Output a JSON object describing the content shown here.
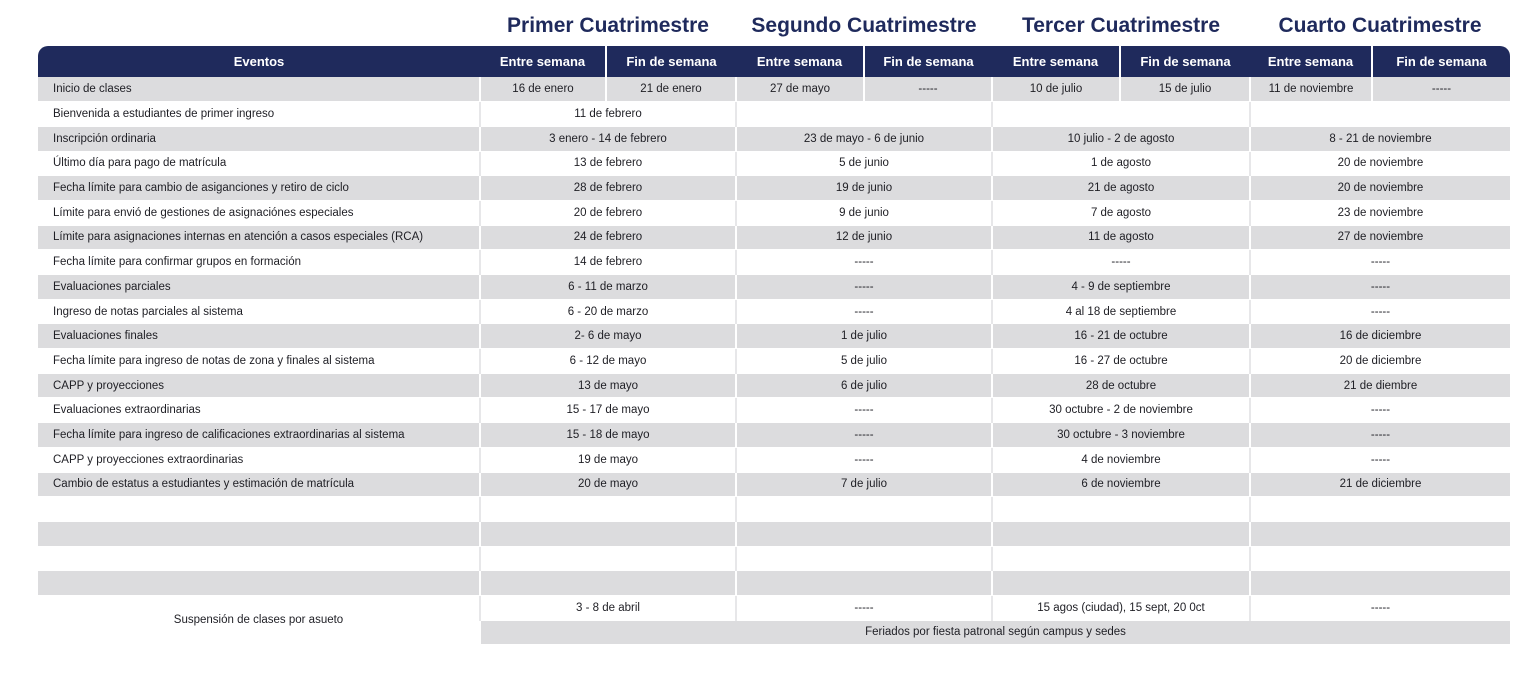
{
  "terms": [
    {
      "title": "Primer Cuatrimestre"
    },
    {
      "title": "Segundo Cuatrimestre"
    },
    {
      "title": "Tercer Cuatrimestre"
    },
    {
      "title": "Cuarto Cuatrimestre"
    }
  ],
  "header": {
    "eventos": "Eventos",
    "weekday": "Entre semana",
    "weekend": "Fin de semana"
  },
  "inicio": {
    "label": "Inicio de clases",
    "values": [
      "16 de enero",
      "21 de enero",
      "27 de mayo",
      "-----",
      "10 de julio",
      "15 de julio",
      "11 de noviembre",
      "-----"
    ]
  },
  "rows": [
    {
      "label": "Bienvenida a estudiantes de primer ingreso",
      "values": [
        "11 de febrero",
        "",
        "",
        ""
      ]
    },
    {
      "label": "Inscripción ordinaria",
      "values": [
        "3 enero - 14 de febrero",
        "23 de mayo - 6 de junio",
        "10 julio - 2 de agosto",
        "8 - 21 de noviembre"
      ]
    },
    {
      "label": "Último día para pago de matrícula",
      "values": [
        "13 de febrero",
        "5 de junio",
        "1 de agosto",
        "20 de noviembre"
      ]
    },
    {
      "label": "Fecha límite para cambio de asiganciones y retiro de ciclo",
      "values": [
        "28 de febrero",
        "19 de junio",
        "21 de agosto",
        "20 de noviembre"
      ]
    },
    {
      "label": "Límite para envió de gestiones de asignaciónes especiales",
      "values": [
        "20 de febrero",
        "9 de junio",
        "7 de agosto",
        "23 de noviembre"
      ]
    },
    {
      "label": "Límite para asignaciones internas en atención a casos especiales (RCA)",
      "values": [
        "24 de febrero",
        "12 de junio",
        "11 de agosto",
        "27 de noviembre"
      ]
    },
    {
      "label": "Fecha límite para confirmar grupos en formación",
      "values": [
        "14 de febrero",
        "-----",
        "-----",
        "-----"
      ]
    },
    {
      "label": "Evaluaciones parciales",
      "values": [
        "6 - 11 de marzo",
        "-----",
        "4 - 9 de septiembre",
        "-----"
      ]
    },
    {
      "label": "Ingreso de notas parciales al sistema",
      "values": [
        "6 - 20 de marzo",
        "-----",
        "4 al 18 de septiembre",
        "-----"
      ]
    },
    {
      "label": "Evaluaciones finales",
      "values": [
        "2- 6 de mayo",
        "1 de julio",
        "16 - 21 de octubre",
        "16 de diciembre"
      ]
    },
    {
      "label": "Fecha límite para ingreso de notas de zona y finales al sistema",
      "values": [
        "6 - 12 de mayo",
        "5 de julio",
        "16 - 27 de octubre",
        "20 de diciembre"
      ]
    },
    {
      "label": "CAPP y proyecciones",
      "values": [
        "13 de mayo",
        "6 de julio",
        "28 de octubre",
        "21 de diembre"
      ]
    },
    {
      "label": "Evaluaciones extraordinarias",
      "values": [
        "15 - 17 de mayo",
        "-----",
        "30 octubre - 2 de noviembre",
        "-----"
      ]
    },
    {
      "label": "Fecha límite para ingreso de calificaciones extraordinarias al sistema",
      "values": [
        "15 - 18 de mayo",
        "-----",
        "30 octubre - 3 noviembre",
        "-----"
      ]
    },
    {
      "label": "CAPP y proyecciones extraordinarias",
      "values": [
        "19 de mayo",
        "-----",
        "4 de noviembre",
        "-----"
      ]
    },
    {
      "label": "Cambio de estatus a estudiantes y estimación de matrícula",
      "values": [
        "20 de mayo",
        "7 de julio",
        "6 de noviembre",
        "21 de diciembre"
      ]
    }
  ],
  "suspension": {
    "label": "Suspensión de clases por asueto",
    "values": [
      "3 - 8 de abril",
      "-----",
      "15 agos (ciudad), 15 sept, 20 0ct",
      "-----"
    ],
    "note": "Feriados por fiesta patronal según campus y sedes"
  }
}
